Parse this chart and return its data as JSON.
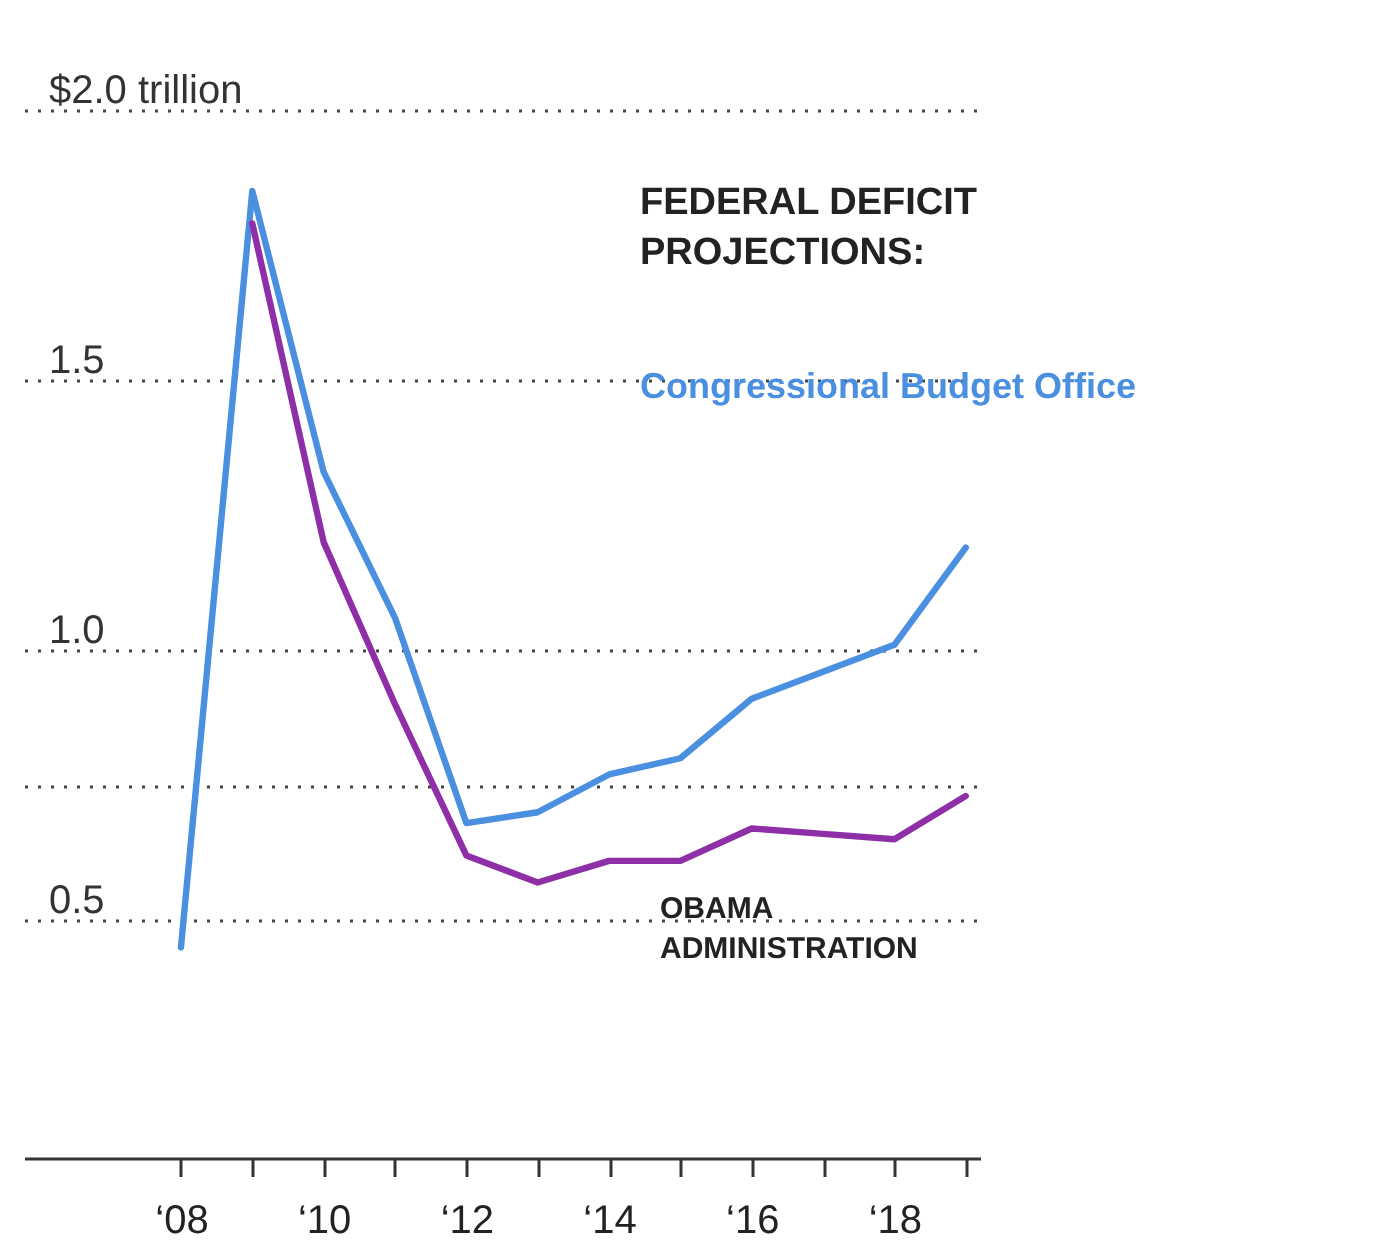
{
  "chart_data": {
    "type": "line",
    "title": "FEDERAL DEFICIT PROJECTIONS:",
    "categories": [
      "‘08",
      null,
      "‘10",
      null,
      "‘12",
      null,
      "‘14",
      null,
      "‘16",
      null,
      "‘18",
      null
    ],
    "series": [
      {
        "name": "Congressional Budget Office",
        "color": "#4a8fe0",
        "values": [
          0.45,
          1.85,
          1.33,
          1.06,
          0.68,
          0.7,
          0.77,
          0.8,
          0.91,
          0.96,
          1.01,
          1.19
        ]
      },
      {
        "name": "OBAMA ADMINISTRATION",
        "color": "#8e2fa8",
        "values": [
          null,
          1.79,
          1.2,
          0.9,
          0.62,
          0.57,
          0.61,
          0.61,
          0.67,
          0.66,
          0.65,
          0.73
        ]
      }
    ],
    "ylim": [
      0.06,
      2.0
    ],
    "yticks": [
      0.5,
      {
        "value": 0.75,
        "label": null
      },
      {
        "value": 1,
        "label": "1.0"
      },
      1.5,
      {
        "value": 2,
        "label": "$2.0 trillion"
      }
    ],
    "grid": "y",
    "legend": false,
    "line_style": "solid",
    "marker": "none"
  }
}
